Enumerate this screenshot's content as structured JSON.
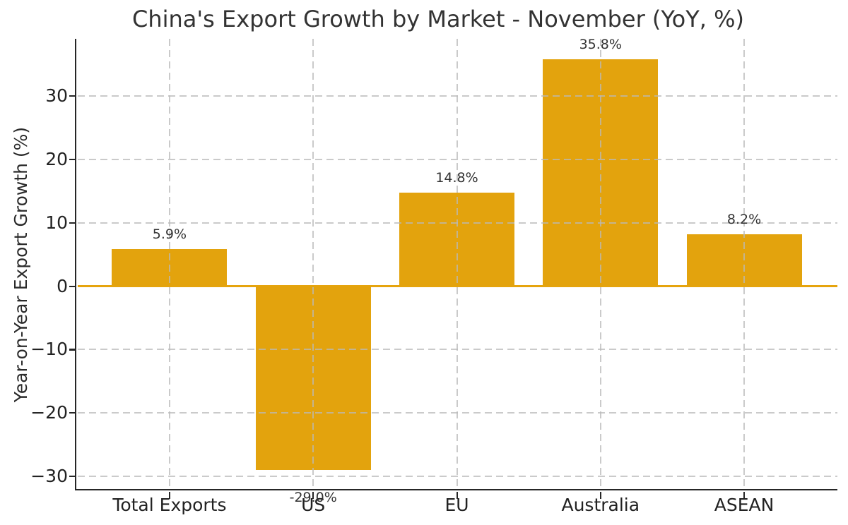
{
  "chart_data": {
    "type": "bar",
    "title": "China's Export Growth by Market - November (YoY, %)",
    "ylabel": "Year-on-Year Export Growth (%)",
    "xlabel": "",
    "categories": [
      "Total Exports",
      "US",
      "EU",
      "Australia",
      "ASEAN"
    ],
    "values": [
      5.9,
      -29.0,
      14.8,
      35.8,
      8.2
    ],
    "bar_labels": [
      "5.9%",
      "-29.0%",
      "14.8%",
      "35.8%",
      "8.2%"
    ],
    "yticks": [
      30,
      20,
      10,
      0,
      -10,
      -20,
      -30
    ],
    "ylim": [
      -32.24,
      39.04
    ],
    "grid": true,
    "grid_style": "dashed",
    "legend": false,
    "colors": {
      "bar": "#E3A30D",
      "zero_line": "#E6A40D",
      "grid": "#c9c9c9",
      "axis": "#262626",
      "title_text": "#333333",
      "tick_text": "#222222"
    }
  }
}
